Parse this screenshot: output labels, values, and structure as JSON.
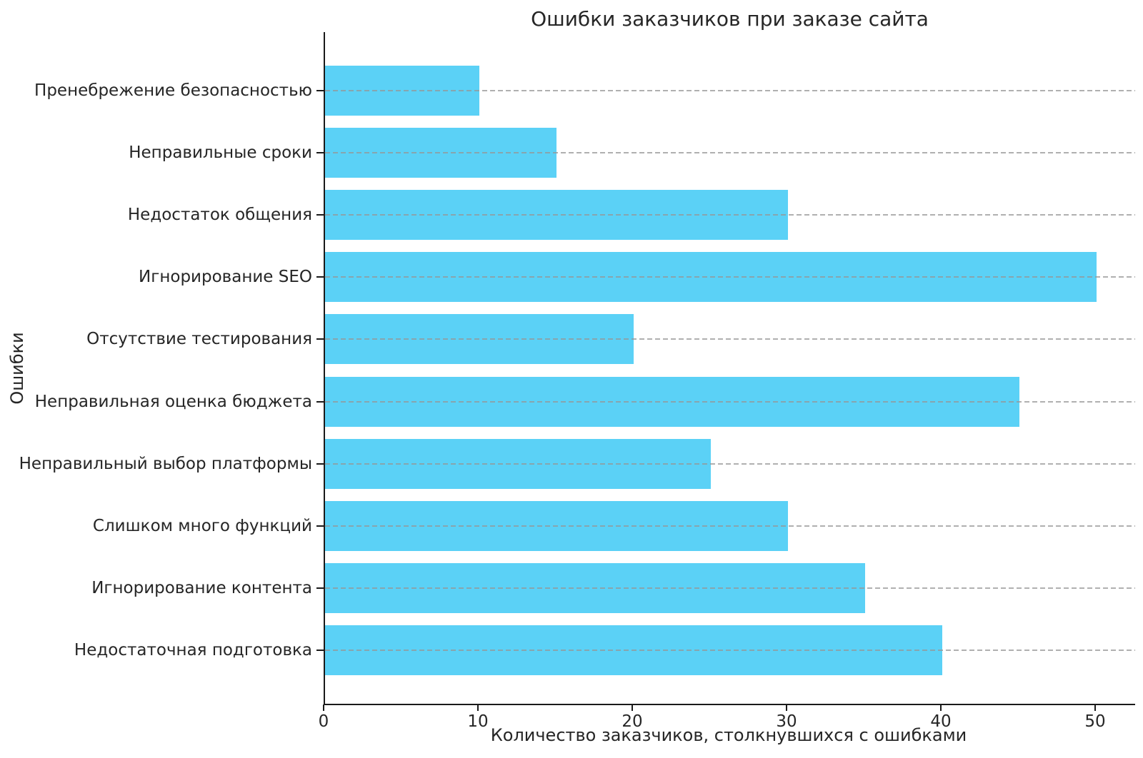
{
  "chart_data": {
    "type": "bar",
    "orientation": "horizontal",
    "title": "Ошибки заказчиков при заказе сайта",
    "xlabel": "Количество заказчиков, столкнувшихся с ошибками",
    "ylabel": "Ошибки",
    "categories": [
      "Пренебрежение безопасностью",
      "Неправильные сроки",
      "Недостаток общения",
      "Игнорирование SEO",
      "Отсутствие тестирования",
      "Неправильная оценка бюджета",
      "Неправильный выбор платформы",
      "Слишком много функций",
      "Игнорирование контента",
      "Недостаточная подготовка"
    ],
    "values": [
      10,
      15,
      30,
      50,
      20,
      45,
      25,
      30,
      35,
      40
    ],
    "x_ticks": [
      0,
      10,
      20,
      30,
      40,
      50
    ],
    "xlim": [
      0,
      52.5
    ],
    "grid": {
      "axis": "y",
      "style": "dashed",
      "color": "#b0b0b0",
      "over_bars": true
    },
    "legend_position": "none",
    "colors": {
      "bar": "#5BD1F6",
      "spine": "#1a1a1a",
      "text": "#262626",
      "background": "#ffffff"
    }
  }
}
